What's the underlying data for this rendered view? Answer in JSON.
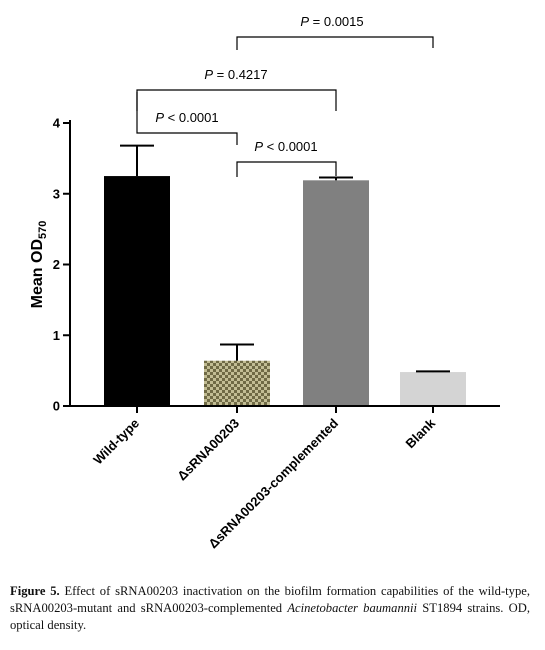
{
  "chart_data": {
    "type": "bar",
    "ylabel": "Mean OD",
    "ylabel_sub": "570",
    "ylim": [
      0,
      4
    ],
    "yticks": [
      0,
      1,
      2,
      3,
      4
    ],
    "grid": false,
    "categories": [
      "Wild-type",
      "ΔsRNA00203",
      "ΔsRNA00203-complemented",
      "Blank"
    ],
    "values": [
      3.25,
      0.64,
      3.19,
      0.48
    ],
    "errors": [
      0.43,
      0.23,
      0.04,
      0.01
    ],
    "colors": [
      "#000000",
      "#8c8866",
      "#808080",
      "#d4d4d4"
    ],
    "patterns": [
      "solid",
      "checker",
      "solid",
      "solid"
    ],
    "comparisons": [
      {
        "label": "P < 0.0001",
        "from": 0,
        "to": 1
      },
      {
        "label": "P < 0.0001",
        "from": 1,
        "to": 2
      },
      {
        "label": "P = 0.4217",
        "from": 0,
        "to": 2
      },
      {
        "label": "P = 0.0015",
        "from": 1,
        "to": 3
      }
    ]
  },
  "caption": {
    "label": "Figure 5.",
    "text_before_species": "Effect of sRNA00203 inactivation on the biofilm formation capabilities of the wild-type, sRNA00203-mutant and sRNA00203-complemented",
    "species": "Acinetobacter baumannii",
    "text_after_species": "ST1894 strains. OD, optical density."
  }
}
